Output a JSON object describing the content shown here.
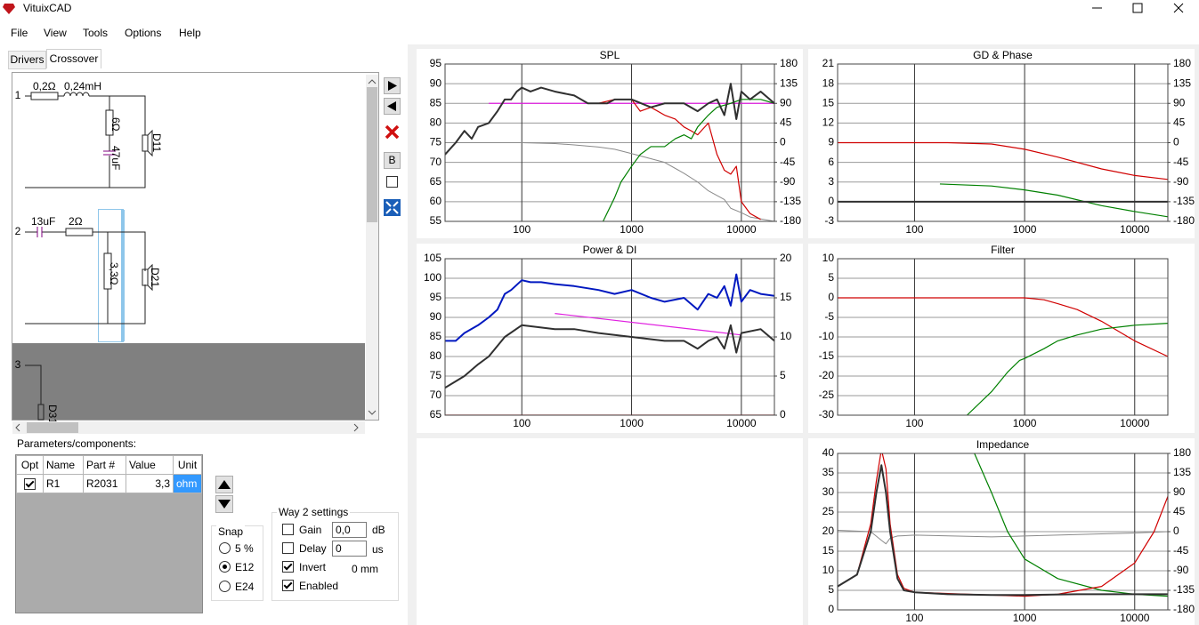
{
  "window": {
    "title": "VituixCAD"
  },
  "menu": [
    "File",
    "View",
    "Tools",
    "Options",
    "Help"
  ],
  "tabs": [
    "Drivers",
    "Crossover"
  ],
  "schematic": {
    "ways": [
      {
        "label": "1",
        "components": [
          "0,2Ω",
          "0,24mH",
          "6Ω",
          "47uF"
        ],
        "driver": "D11"
      },
      {
        "label": "2",
        "components": [
          "13uF",
          "2Ω",
          "3,3Ω"
        ],
        "driver": "D21"
      },
      {
        "label": "3",
        "driver": "D31"
      }
    ]
  },
  "toolbar": {
    "b_button": "B"
  },
  "parameters": {
    "title": "Parameters/components:",
    "columns": [
      "Opt",
      "Name",
      "Part #",
      "Value",
      "Unit"
    ],
    "rows": [
      {
        "opt": true,
        "name": "R1",
        "part": "R2031",
        "value": "3,3",
        "unit": "ohm"
      }
    ]
  },
  "snap": {
    "title": "Snap",
    "options": [
      "5 %",
      "E12",
      "E24"
    ],
    "selected": 1
  },
  "way_settings": {
    "title": "Way 2 settings",
    "gain": {
      "label": "Gain",
      "checked": false,
      "value": "0,0",
      "unit": "dB"
    },
    "delay": {
      "label": "Delay",
      "checked": false,
      "value": "0",
      "unit": "us"
    },
    "invert": {
      "label": "Invert",
      "checked": true,
      "distance": "0 mm"
    },
    "enabled": {
      "label": "Enabled",
      "checked": true
    }
  },
  "chart_data": [
    {
      "type": "line",
      "title": "SPL",
      "xscale": "log",
      "xlim": [
        20,
        20000
      ],
      "xticks": [
        100,
        1000,
        10000
      ],
      "ylim": [
        55,
        95
      ],
      "yticks": [
        55,
        60,
        65,
        70,
        75,
        80,
        85,
        90,
        95
      ],
      "y2lim": [
        -180,
        180
      ],
      "y2ticks": [
        -180,
        -135,
        -90,
        -45,
        0,
        45,
        90,
        135,
        180
      ],
      "grid": true,
      "series": [
        {
          "color": "#8a8a8a",
          "axis": "y2",
          "x": [
            20,
            50,
            100,
            200,
            300,
            500,
            700,
            1000,
            2000,
            3000,
            4000,
            5000,
            7000,
            8000,
            10000,
            12000,
            20000
          ],
          "values": [
            0,
            0,
            0,
            -2,
            -5,
            -10,
            -15,
            -25,
            -45,
            -70,
            -90,
            -110,
            -130,
            -150,
            -160,
            -170,
            -180
          ]
        },
        {
          "color": "#e020e0",
          "x": [
            50,
            20000
          ],
          "values": [
            85,
            85
          ]
        },
        {
          "color": "#d00000",
          "x": [
            400,
            500,
            700,
            1000,
            1200,
            1500,
            2000,
            2500,
            3000,
            3500,
            4000,
            5000,
            6000,
            7000,
            8000,
            9000,
            10000,
            12000,
            15000
          ],
          "values": [
            85,
            85,
            86,
            86,
            83,
            84,
            82,
            81,
            79,
            78,
            77,
            80,
            72,
            68,
            67,
            69,
            60,
            57,
            55.5
          ]
        },
        {
          "color": "#008000",
          "x": [
            550,
            700,
            800,
            1000,
            1200,
            1500,
            2000,
            2500,
            3000,
            3500,
            4000,
            5000,
            6000,
            8000,
            10000,
            15000,
            20000
          ],
          "values": [
            55,
            61,
            65,
            69,
            72,
            74,
            74,
            76,
            77,
            76,
            79,
            82,
            84,
            85,
            86,
            86,
            85
          ]
        },
        {
          "color": "#303030",
          "x": [
            20,
            25,
            30,
            35,
            40,
            50,
            60,
            70,
            80,
            90,
            100,
            120,
            150,
            200,
            300,
            400,
            500,
            600,
            700,
            1000,
            1500,
            2000,
            3000,
            4000,
            5000,
            6000,
            7000,
            8000,
            9000,
            10000,
            12000,
            15000,
            20000
          ],
          "values": [
            72,
            75,
            78,
            76,
            79,
            80,
            83,
            86,
            86,
            88,
            89,
            88,
            89,
            88,
            87,
            85,
            85,
            85,
            86,
            86,
            84,
            85,
            85,
            83,
            85,
            86,
            82,
            90,
            81,
            88,
            86,
            88,
            85
          ]
        }
      ]
    },
    {
      "type": "line",
      "title": "GD & Phase",
      "xscale": "log",
      "xlim": [
        20,
        20000
      ],
      "xticks": [
        100,
        1000,
        10000
      ],
      "ylim": [
        -3,
        21
      ],
      "yticks": [
        -3,
        0,
        3,
        6,
        9,
        12,
        15,
        18,
        21
      ],
      "y2lim": [
        -180,
        180
      ],
      "y2ticks": [
        -180,
        -135,
        -90,
        -45,
        0,
        45,
        90,
        135,
        180
      ],
      "grid": true,
      "series": [
        {
          "color": "#d00000",
          "x": [
            20,
            100,
            200,
            500,
            1000,
            2000,
            5000,
            10000,
            20000
          ],
          "values": [
            9,
            9,
            9,
            8.8,
            8,
            6.8,
            5,
            4,
            3.4
          ]
        },
        {
          "color": "#008000",
          "x": [
            170,
            500,
            1000,
            2000,
            5000,
            10000,
            20000
          ],
          "values": [
            2.7,
            2.4,
            1.8,
            1,
            -0.6,
            -1.5,
            -2.3
          ]
        },
        {
          "color": "#303030",
          "x": [
            20,
            20000
          ],
          "values": [
            0,
            0
          ]
        }
      ]
    },
    {
      "type": "line",
      "title": "Power & DI",
      "xscale": "log",
      "xlim": [
        20,
        20000
      ],
      "xticks": [
        100,
        1000,
        10000
      ],
      "ylim": [
        65,
        105
      ],
      "yticks": [
        65,
        70,
        75,
        80,
        85,
        90,
        95,
        100,
        105
      ],
      "y2lim": [
        0,
        20
      ],
      "y2ticks": [
        0,
        5,
        10,
        15,
        20
      ],
      "grid": true,
      "series": [
        {
          "color": "#d00000",
          "axis": "y2",
          "x": [
            20,
            20000
          ],
          "values": [
            0,
            0
          ]
        },
        {
          "color": "#e020e0",
          "x": [
            200,
            5000,
            10000
          ],
          "values": [
            91,
            86.5,
            85.5
          ]
        },
        {
          "color": "#303030",
          "x": [
            20,
            30,
            40,
            50,
            70,
            100,
            200,
            300,
            500,
            1000,
            2000,
            3000,
            4000,
            5000,
            6000,
            7000,
            8000,
            9000,
            10000,
            15000,
            20000
          ],
          "values": [
            72,
            75,
            78,
            80,
            85,
            88,
            87,
            87,
            86,
            85,
            84,
            84,
            82,
            84,
            85,
            82,
            88,
            81,
            86,
            87,
            84
          ]
        },
        {
          "color": "#0018c0",
          "x": [
            20,
            25,
            30,
            40,
            50,
            60,
            70,
            80,
            100,
            120,
            150,
            200,
            300,
            500,
            700,
            1000,
            1500,
            2000,
            3000,
            4000,
            5000,
            6000,
            7000,
            8000,
            9000,
            10000,
            12000,
            15000,
            20000
          ],
          "values": [
            84,
            84,
            86,
            88,
            90,
            92,
            96,
            97,
            99.5,
            99,
            99,
            98.5,
            98,
            97,
            96,
            97,
            95,
            94,
            95,
            92,
            96,
            95,
            98,
            93,
            101,
            94,
            97,
            96,
            95.5
          ]
        }
      ]
    },
    {
      "type": "line",
      "title": "Filter",
      "xscale": "log",
      "xlim": [
        20,
        20000
      ],
      "xticks": [
        100,
        1000,
        10000
      ],
      "ylim": [
        -30,
        10
      ],
      "yticks": [
        -30,
        -25,
        -20,
        -15,
        -10,
        -5,
        0,
        5,
        10
      ],
      "grid": true,
      "series": [
        {
          "color": "#d00000",
          "x": [
            20,
            100,
            500,
            1000,
            1500,
            2000,
            3000,
            5000,
            10000,
            20000
          ],
          "values": [
            0,
            0,
            0,
            0,
            -0.5,
            -1.5,
            -3,
            -6,
            -11,
            -15
          ]
        },
        {
          "color": "#008000",
          "x": [
            300,
            500,
            700,
            900,
            1000,
            1500,
            2000,
            3000,
            5000,
            10000,
            20000
          ],
          "values": [
            -30,
            -24,
            -19,
            -16,
            -15.5,
            -13,
            -11,
            -9.5,
            -8,
            -7,
            -6.5
          ]
        }
      ]
    },
    {
      "type": "line",
      "title": "Impedance",
      "xscale": "log",
      "xlim": [
        20,
        20000
      ],
      "xticks": [
        100,
        1000,
        10000
      ],
      "ylim": [
        0,
        40
      ],
      "yticks": [
        0,
        5,
        10,
        15,
        20,
        25,
        30,
        35,
        40
      ],
      "y2lim": [
        -180,
        180
      ],
      "y2ticks": [
        -180,
        -135,
        -90,
        -45,
        0,
        45,
        90,
        135,
        180
      ],
      "grid": true,
      "series": [
        {
          "color": "#8a8a8a",
          "axis": "y2",
          "x": [
            20,
            40,
            50,
            55,
            60,
            70,
            100,
            500,
            1000,
            5000,
            10000,
            20000
          ],
          "values": [
            3,
            0,
            -20,
            -28,
            -15,
            -10,
            -8,
            -12,
            -10,
            -5,
            -3,
            0
          ]
        },
        {
          "color": "#008000",
          "x": [
            350,
            500,
            700,
            1000,
            2000,
            5000,
            10000,
            20000
          ],
          "values": [
            40,
            30,
            20,
            13,
            8,
            5,
            4,
            3.5
          ]
        },
        {
          "color": "#d00000",
          "x": [
            20,
            30,
            40,
            45,
            50,
            55,
            60,
            70,
            80,
            100,
            300,
            1000,
            2000,
            5000,
            10000,
            15000,
            20000
          ],
          "values": [
            6,
            9,
            22,
            33,
            41,
            36,
            22,
            9,
            5.5,
            4.5,
            4,
            3.5,
            4,
            6,
            12,
            20,
            29
          ]
        },
        {
          "color": "#303030",
          "x": [
            20,
            30,
            40,
            45,
            50,
            55,
            60,
            70,
            80,
            100,
            200,
            500,
            1000,
            3000,
            10000,
            20000
          ],
          "values": [
            6,
            9,
            20,
            30,
            37,
            30,
            20,
            8,
            5,
            4.5,
            4,
            3.8,
            3.8,
            4,
            4,
            4
          ]
        }
      ]
    }
  ]
}
